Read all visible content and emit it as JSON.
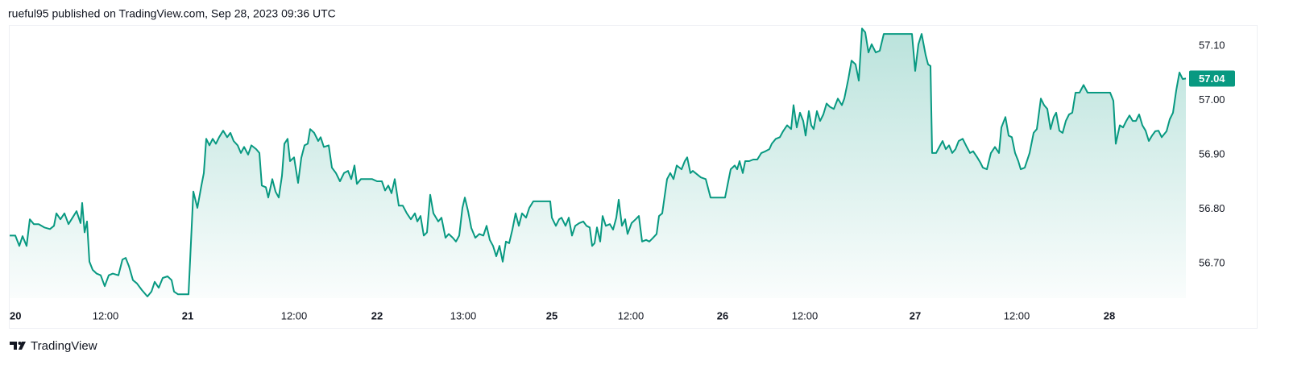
{
  "header": "rueful95 published on TradingView.com, Sep 28, 2023 09:36 UTC",
  "footer": {
    "brand": "TradingView"
  },
  "chart_data": {
    "type": "area",
    "color": "#089981",
    "last_value": 57.04,
    "xlim": [
      0,
      1460
    ],
    "ylim": [
      56.636,
      57.137
    ],
    "xticks": [
      {
        "value": 0,
        "label": "20"
      },
      {
        "value": 119,
        "label": "12:00"
      },
      {
        "value": 221,
        "label": "21"
      },
      {
        "value": 353,
        "label": "12:00"
      },
      {
        "value": 456,
        "label": "22"
      },
      {
        "value": 563,
        "label": "13:00"
      },
      {
        "value": 673,
        "label": "25"
      },
      {
        "value": 771,
        "label": "12:00"
      },
      {
        "value": 885,
        "label": "26"
      },
      {
        "value": 987,
        "label": "12:00"
      },
      {
        "value": 1124,
        "label": "27"
      },
      {
        "value": 1250,
        "label": "12:00"
      },
      {
        "value": 1365,
        "label": "28"
      }
    ],
    "yticks": [
      {
        "value": 56.7,
        "label": "56.70"
      },
      {
        "value": 56.8,
        "label": "56.80"
      },
      {
        "value": 56.9,
        "label": "56.90"
      },
      {
        "value": 57.0,
        "label": "57.00"
      },
      {
        "value": 57.1,
        "label": "57.10"
      }
    ],
    "x": [
      0,
      7,
      12,
      16,
      21,
      25,
      30,
      36,
      43,
      50,
      55,
      58,
      63,
      68,
      73,
      78,
      83,
      88,
      90,
      93,
      96,
      99,
      103,
      108,
      113,
      118,
      123,
      128,
      135,
      140,
      144,
      148,
      153,
      158,
      164,
      171,
      176,
      180,
      185,
      190,
      196,
      201,
      204,
      209,
      216,
      222,
      228,
      233,
      238,
      241,
      244,
      248,
      252,
      256,
      260,
      265,
      270,
      274,
      278,
      283,
      287,
      291,
      296,
      300,
      306,
      310,
      313,
      318,
      321,
      326,
      330,
      334,
      338,
      341,
      345,
      348,
      353,
      358,
      362,
      366,
      370,
      373,
      378,
      383,
      386,
      390,
      396,
      400,
      405,
      410,
      415,
      420,
      424,
      428,
      431,
      436,
      443,
      450,
      456,
      462,
      466,
      470,
      474,
      478,
      483,
      488,
      493,
      498,
      503,
      506,
      510,
      514,
      518,
      522,
      526,
      532,
      536,
      541,
      545,
      550,
      554,
      558,
      562,
      565,
      569,
      573,
      578,
      583,
      588,
      592,
      596,
      600,
      604,
      608,
      612,
      616,
      620,
      624,
      628,
      632,
      636,
      641,
      645,
      650,
      658,
      666,
      671,
      673,
      678,
      682,
      685,
      690,
      694,
      698,
      702,
      707,
      712,
      716,
      720,
      723,
      726,
      729,
      733,
      736,
      740,
      745,
      749,
      753,
      756,
      760,
      764,
      767,
      772,
      777,
      781,
      785,
      790,
      794,
      798,
      803,
      806,
      810,
      816,
      820,
      824,
      828,
      834,
      838,
      841,
      845,
      848,
      853,
      858,
      864,
      870,
      876,
      882,
      888,
      892,
      895,
      900,
      903,
      906,
      910,
      913,
      918,
      923,
      928,
      933,
      938,
      943,
      946,
      951,
      956,
      960,
      965,
      970,
      973,
      977,
      981,
      985,
      988,
      992,
      995,
      998,
      1002,
      1006,
      1010,
      1014,
      1018,
      1023,
      1028,
      1033,
      1036,
      1041,
      1045,
      1050,
      1054,
      1058,
      1062,
      1066,
      1070,
      1075,
      1080,
      1085,
      1092,
      1103,
      1113,
      1120,
      1124,
      1128,
      1132,
      1137,
      1140,
      1143,
      1145,
      1150,
      1154,
      1158,
      1162,
      1166,
      1170,
      1174,
      1178,
      1183,
      1188,
      1192,
      1196,
      1201,
      1205,
      1208,
      1213,
      1218,
      1223,
      1228,
      1231,
      1236,
      1240,
      1244,
      1248,
      1252,
      1255,
      1260,
      1266,
      1271,
      1275,
      1280,
      1284,
      1288,
      1292,
      1296,
      1299,
      1303,
      1307,
      1311,
      1315,
      1319,
      1323,
      1328,
      1333,
      1338,
      1348,
      1358,
      1366,
      1370,
      1373,
      1378,
      1382,
      1386,
      1390,
      1394,
      1398,
      1402,
      1406,
      1410,
      1414,
      1418,
      1422,
      1426,
      1430,
      1436,
      1440,
      1444,
      1448,
      1452,
      1456,
      1460
    ],
    "values": [
      56.751,
      56.751,
      56.732,
      56.75,
      56.732,
      56.781,
      56.772,
      56.772,
      56.766,
      56.763,
      56.769,
      56.792,
      56.781,
      56.792,
      56.772,
      56.784,
      56.796,
      56.774,
      56.811,
      56.757,
      56.777,
      56.703,
      56.688,
      56.681,
      56.678,
      56.658,
      56.678,
      56.681,
      56.678,
      56.707,
      56.71,
      56.695,
      56.669,
      56.663,
      56.651,
      56.639,
      56.648,
      56.666,
      56.655,
      56.673,
      56.676,
      56.669,
      56.648,
      56.643,
      56.643,
      56.643,
      56.832,
      56.802,
      56.843,
      56.866,
      56.929,
      56.917,
      56.929,
      56.92,
      56.932,
      56.944,
      56.932,
      56.94,
      56.925,
      56.917,
      56.903,
      56.914,
      56.9,
      56.917,
      56.91,
      56.903,
      56.843,
      56.84,
      56.821,
      56.855,
      56.832,
      56.821,
      56.861,
      56.92,
      56.929,
      56.888,
      56.895,
      56.848,
      56.894,
      56.917,
      56.92,
      56.947,
      56.94,
      56.925,
      56.932,
      56.914,
      56.917,
      56.876,
      56.866,
      56.851,
      56.866,
      56.87,
      56.855,
      56.88,
      56.846,
      56.855,
      56.855,
      56.855,
      56.851,
      56.851,
      56.834,
      56.843,
      56.829,
      56.855,
      56.806,
      56.806,
      56.792,
      56.781,
      56.792,
      56.777,
      56.787,
      56.751,
      56.757,
      56.826,
      56.792,
      56.777,
      56.784,
      56.747,
      56.754,
      56.747,
      56.74,
      56.751,
      56.802,
      56.821,
      56.796,
      56.765,
      56.747,
      56.754,
      56.751,
      56.769,
      56.743,
      56.732,
      56.713,
      56.732,
      56.703,
      56.74,
      56.737,
      56.762,
      56.792,
      56.769,
      56.792,
      56.784,
      56.802,
      56.814,
      56.814,
      56.814,
      56.814,
      56.784,
      56.769,
      56.781,
      56.784,
      56.769,
      56.784,
      56.751,
      56.769,
      56.774,
      56.777,
      56.769,
      56.766,
      56.732,
      56.737,
      56.766,
      56.74,
      56.787,
      56.769,
      56.772,
      56.762,
      56.784,
      56.817,
      56.769,
      56.781,
      56.754,
      56.774,
      56.781,
      56.787,
      56.74,
      56.743,
      56.74,
      56.746,
      56.754,
      56.787,
      56.792,
      56.855,
      56.866,
      56.855,
      56.88,
      56.873,
      56.888,
      56.895,
      56.866,
      56.87,
      56.864,
      56.858,
      56.855,
      56.821,
      56.821,
      56.821,
      56.821,
      56.851,
      56.873,
      56.88,
      56.873,
      56.888,
      56.866,
      56.888,
      56.888,
      56.891,
      56.891,
      56.903,
      56.906,
      56.91,
      56.92,
      56.929,
      56.932,
      56.943,
      56.954,
      56.947,
      56.991,
      56.95,
      56.977,
      56.962,
      56.935,
      56.98,
      56.954,
      56.947,
      56.98,
      56.962,
      56.974,
      56.994,
      56.988,
      56.984,
      57.003,
      56.991,
      57.003,
      57.039,
      57.073,
      57.066,
      57.036,
      57.132,
      57.125,
      57.088,
      57.103,
      57.088,
      57.091,
      57.122,
      57.122,
      57.122,
      57.122,
      57.122,
      57.054,
      57.103,
      57.122,
      57.083,
      57.066,
      57.063,
      56.903,
      56.903,
      56.914,
      56.925,
      56.91,
      56.917,
      56.903,
      56.91,
      56.925,
      56.929,
      56.914,
      56.903,
      56.906,
      56.895,
      56.885,
      56.876,
      56.873,
      56.903,
      56.914,
      56.903,
      56.95,
      56.969,
      56.935,
      56.932,
      56.903,
      56.888,
      56.873,
      56.876,
      56.903,
      56.94,
      56.947,
      57.003,
      56.991,
      56.984,
      56.947,
      56.969,
      56.977,
      56.944,
      56.94,
      56.962,
      56.974,
      56.977,
      57.014,
      57.014,
      57.028,
      57.014,
      57.014,
      57.014,
      57.014,
      56.999,
      56.92,
      56.954,
      56.95,
      56.962,
      56.972,
      56.962,
      56.962,
      56.974,
      56.954,
      56.944,
      56.925,
      56.935,
      56.943,
      56.944,
      56.932,
      56.943,
      56.965,
      56.977,
      57.018,
      57.051,
      57.039,
      57.04
    ]
  }
}
